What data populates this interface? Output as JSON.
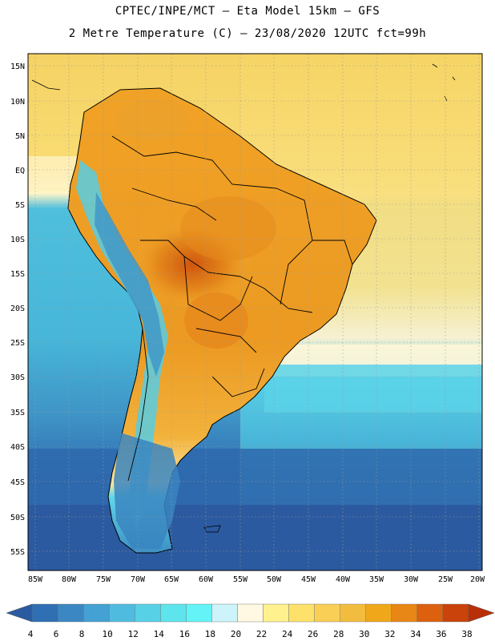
{
  "header": {
    "line1": "CPTEC/INPE/MCT –  Eta Model 15km – GFS",
    "line2": "2 Metre Temperature (C) – 23/08/2020 12UTC fct=99h"
  },
  "axes": {
    "lat_labels": [
      "15N",
      "10N",
      "5N",
      "EQ",
      "5S",
      "10S",
      "15S",
      "20S",
      "25S",
      "30S",
      "35S",
      "40S",
      "45S",
      "50S",
      "55S"
    ],
    "lon_labels": [
      "85W",
      "80W",
      "75W",
      "70W",
      "65W",
      "60W",
      "55W",
      "50W",
      "45W",
      "40W",
      "35W",
      "30W",
      "25W",
      "20W"
    ]
  },
  "colorbar": {
    "labels": [
      "4",
      "6",
      "8",
      "10",
      "12",
      "14",
      "16",
      "18",
      "20",
      "22",
      "24",
      "26",
      "28",
      "30",
      "32",
      "34",
      "36",
      "38"
    ],
    "colors": [
      "#2c5aa0",
      "#2f6fb4",
      "#3a87c3",
      "#44a1d3",
      "#4fbcdf",
      "#57d1e6",
      "#5ee4ec",
      "#64f4f7",
      "#cdf4fb",
      "#fff9e4",
      "#fff28e",
      "#fde16a",
      "#f9cf55",
      "#f2bd3f",
      "#f0a81a",
      "#e88715",
      "#dc600e",
      "#c9430a",
      "#b83008"
    ]
  },
  "map": {
    "ocean_warm": "#f6d568",
    "ocean_cool": "#4bbfdc",
    "ocean_cold": "#2c5aa0"
  }
}
